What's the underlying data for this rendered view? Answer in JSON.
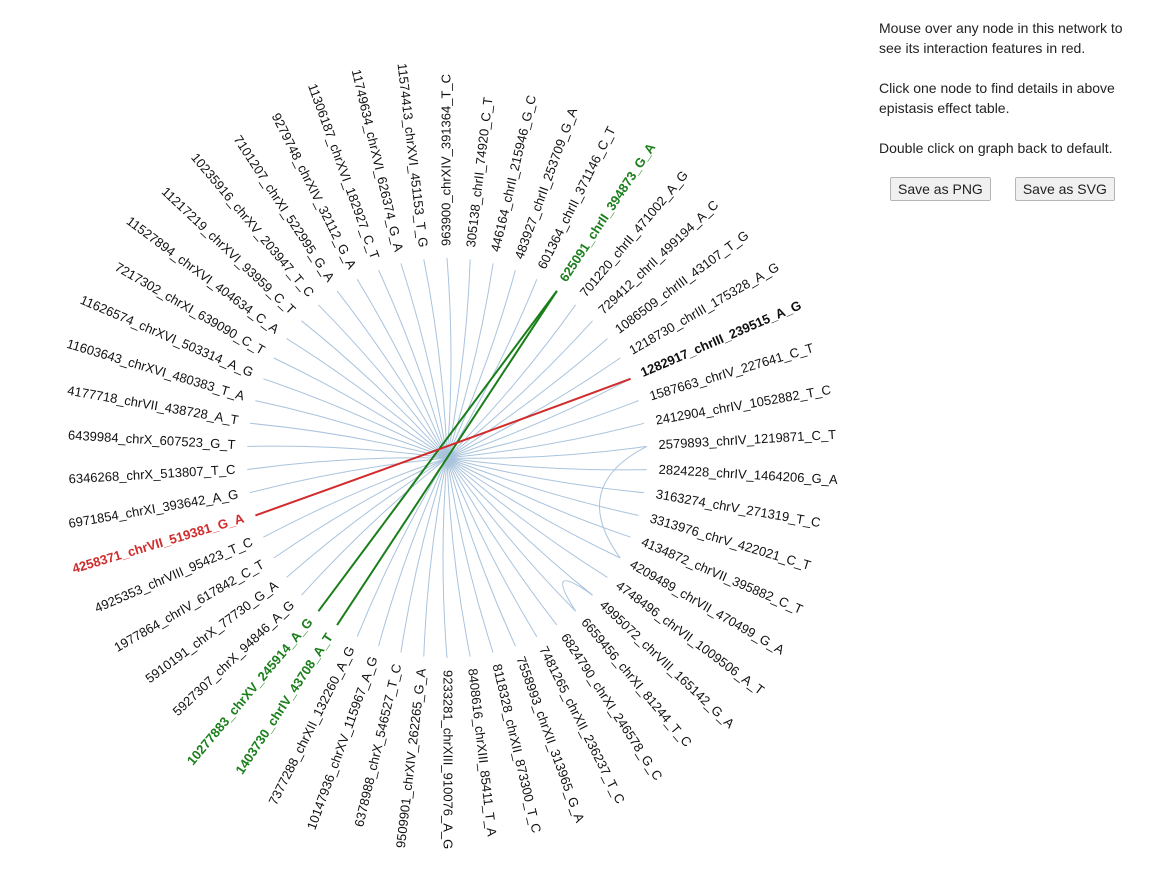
{
  "help": {
    "line1": "Mouse over any node in this network to see its interaction features in red.",
    "line2": "Click one node to find details in above epistasis effect table.",
    "line3": "Double click on graph back to default."
  },
  "buttons": {
    "png": "Save as PNG",
    "svg": "Save as SVG"
  },
  "colors": {
    "link": "#a9c3dd",
    "green": "#1a7f1a",
    "red": "#d12b2b"
  },
  "nodes": [
    {
      "label": "963900_chrXIV_391364_T_C"
    },
    {
      "label": "305138_chrII_74920_C_T"
    },
    {
      "label": "446164_chrII_215946_G_C"
    },
    {
      "label": "483927_chrII_253709_G_A"
    },
    {
      "label": "601364_chrII_371146_C_T"
    },
    {
      "label": "625091_chrII_394873_G_A",
      "highlight": "green"
    },
    {
      "label": "701220_chrII_471002_A_G"
    },
    {
      "label": "729412_chrII_499194_A_C"
    },
    {
      "label": "1086509_chrIII_43107_T_G"
    },
    {
      "label": "1218730_chrIII_175328_A_G"
    },
    {
      "label": "1282917_chrIII_239515_A_G",
      "highlight": "bold"
    },
    {
      "label": "1587663_chrIV_227641_C_T"
    },
    {
      "label": "2412904_chrIV_1052882_T_C"
    },
    {
      "label": "2579893_chrIV_1219871_C_T"
    },
    {
      "label": "2824228_chrIV_1464206_G_A"
    },
    {
      "label": "3163274_chrV_271319_T_C"
    },
    {
      "label": "3313976_chrV_422021_C_T"
    },
    {
      "label": "4134872_chrVII_395882_C_T"
    },
    {
      "label": "4209489_chrVII_470499_G_A"
    },
    {
      "label": "4748496_chrVII_1009506_A_T"
    },
    {
      "label": "4995072_chrVIII_165142_G_A"
    },
    {
      "label": "6659456_chrXI_81244_T_C"
    },
    {
      "label": "6824790_chrXI_246578_G_C"
    },
    {
      "label": "7481265_chrXII_236237_T_C"
    },
    {
      "label": "7558993_chrXII_313965_G_A"
    },
    {
      "label": "8118328_chrXII_873300_T_C"
    },
    {
      "label": "8408616_chrXIII_85411_T_A"
    },
    {
      "label": "9233281_chrXIII_910076_A_G"
    },
    {
      "label": "9509901_chrXIV_262265_G_A"
    },
    {
      "label": "6378988_chrX_546527_T_C"
    },
    {
      "label": "10147936_chrXV_115967_A_G"
    },
    {
      "label": "7377288_chrXII_132260_A_G"
    },
    {
      "label": "1403730_chrIV_43708_A_T",
      "highlight": "green"
    },
    {
      "label": "10277883_chrXV_245914_A_G",
      "highlight": "green"
    },
    {
      "label": "5927307_chrX_94846_A_G"
    },
    {
      "label": "5910191_chrX_77730_G_A"
    },
    {
      "label": "1977864_chrIV_617842_C_T"
    },
    {
      "label": "4925353_chrVIII_95423_T_C"
    },
    {
      "label": "4258371_chrVII_519381_G_A",
      "highlight": "red"
    },
    {
      "label": "6971854_chrXI_393642_A_G"
    },
    {
      "label": "6346268_chrX_513807_T_C"
    },
    {
      "label": "6439984_chrX_607523_G_T"
    },
    {
      "label": "4177718_chrVII_438728_A_T"
    },
    {
      "label": "11603643_chrXVI_480383_T_A"
    },
    {
      "label": "11626574_chrXVI_503314_A_G"
    },
    {
      "label": "7217302_chrXI_639090_C_T"
    },
    {
      "label": "11527894_chrXVI_404634_C_A"
    },
    {
      "label": "11217219_chrXVI_93959_C_T"
    },
    {
      "label": "10235916_chrXV_203947_T_C"
    },
    {
      "label": "7101207_chrXI_522995_G_A"
    },
    {
      "label": "9279748_chrXIV_32112_G_A"
    },
    {
      "label": "11306187_chrXVI_182927_C_T"
    },
    {
      "label": "11749634_chrXVI_626374_G_A"
    },
    {
      "label": "11574413_chrXVI_451153_T_G"
    }
  ]
}
